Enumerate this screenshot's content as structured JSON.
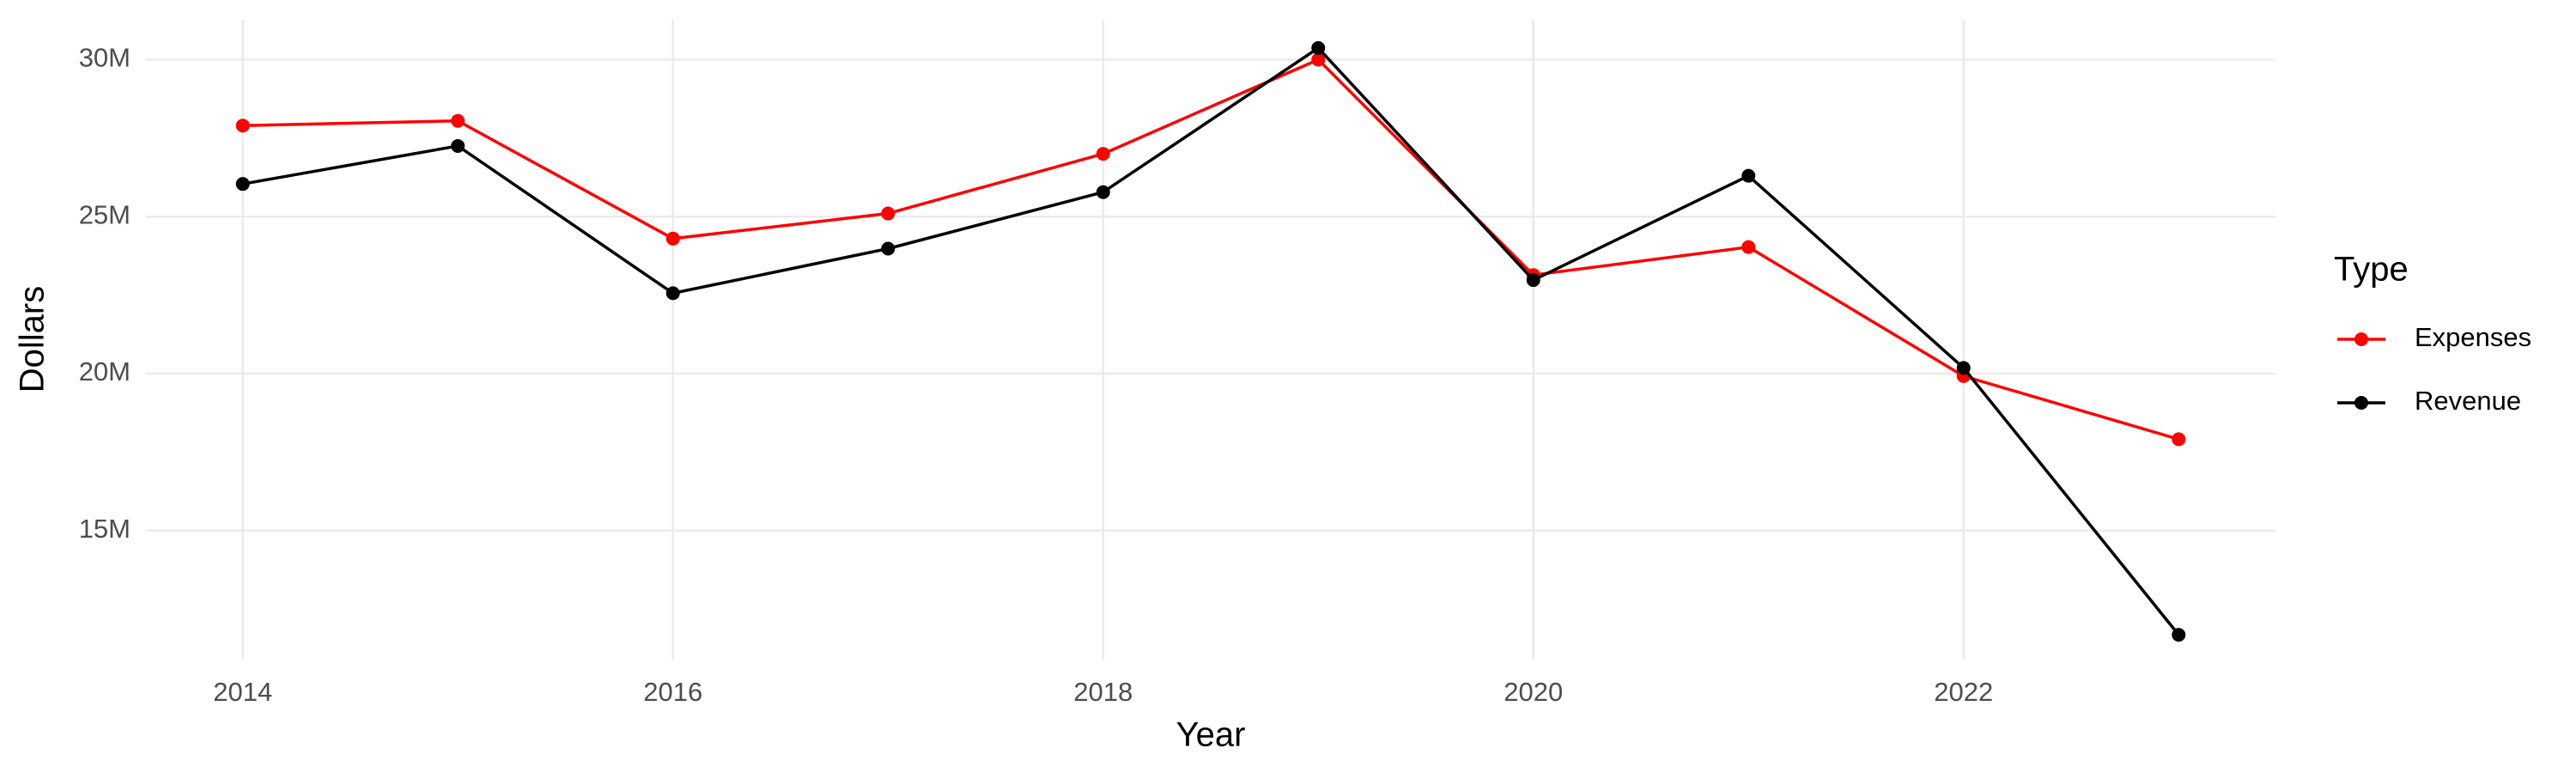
{
  "chart_data": {
    "type": "line",
    "x_label": "Year",
    "y_label": "Dollars",
    "legend_title": "Type",
    "x": [
      2014,
      2015,
      2016,
      2017,
      2018,
      2019,
      2020,
      2021,
      2022,
      2023
    ],
    "series": [
      {
        "name": "Expenses",
        "color": "#ff0000",
        "values": [
          27900000,
          28050000,
          24300000,
          25100000,
          27000000,
          30000000,
          23140000,
          24030000,
          19920000,
          17910000
        ]
      },
      {
        "name": "Revenue",
        "color": "#000000",
        "values": [
          26040000,
          27250000,
          22560000,
          23980000,
          25780000,
          30370000,
          22980000,
          26300000,
          20180000,
          11680000
        ]
      }
    ],
    "xlim": [
      2013.55,
      2023.45
    ],
    "xticks": [
      2014,
      2016,
      2018,
      2020,
      2022
    ],
    "ylim": [
      10890000,
      31270000
    ],
    "yticks": [
      {
        "value": 15000000,
        "label": "15M"
      },
      {
        "value": 20000000,
        "label": "20M"
      },
      {
        "value": 25000000,
        "label": "25M"
      },
      {
        "value": 30000000,
        "label": "30M"
      }
    ],
    "grid": true,
    "legend": "right"
  }
}
